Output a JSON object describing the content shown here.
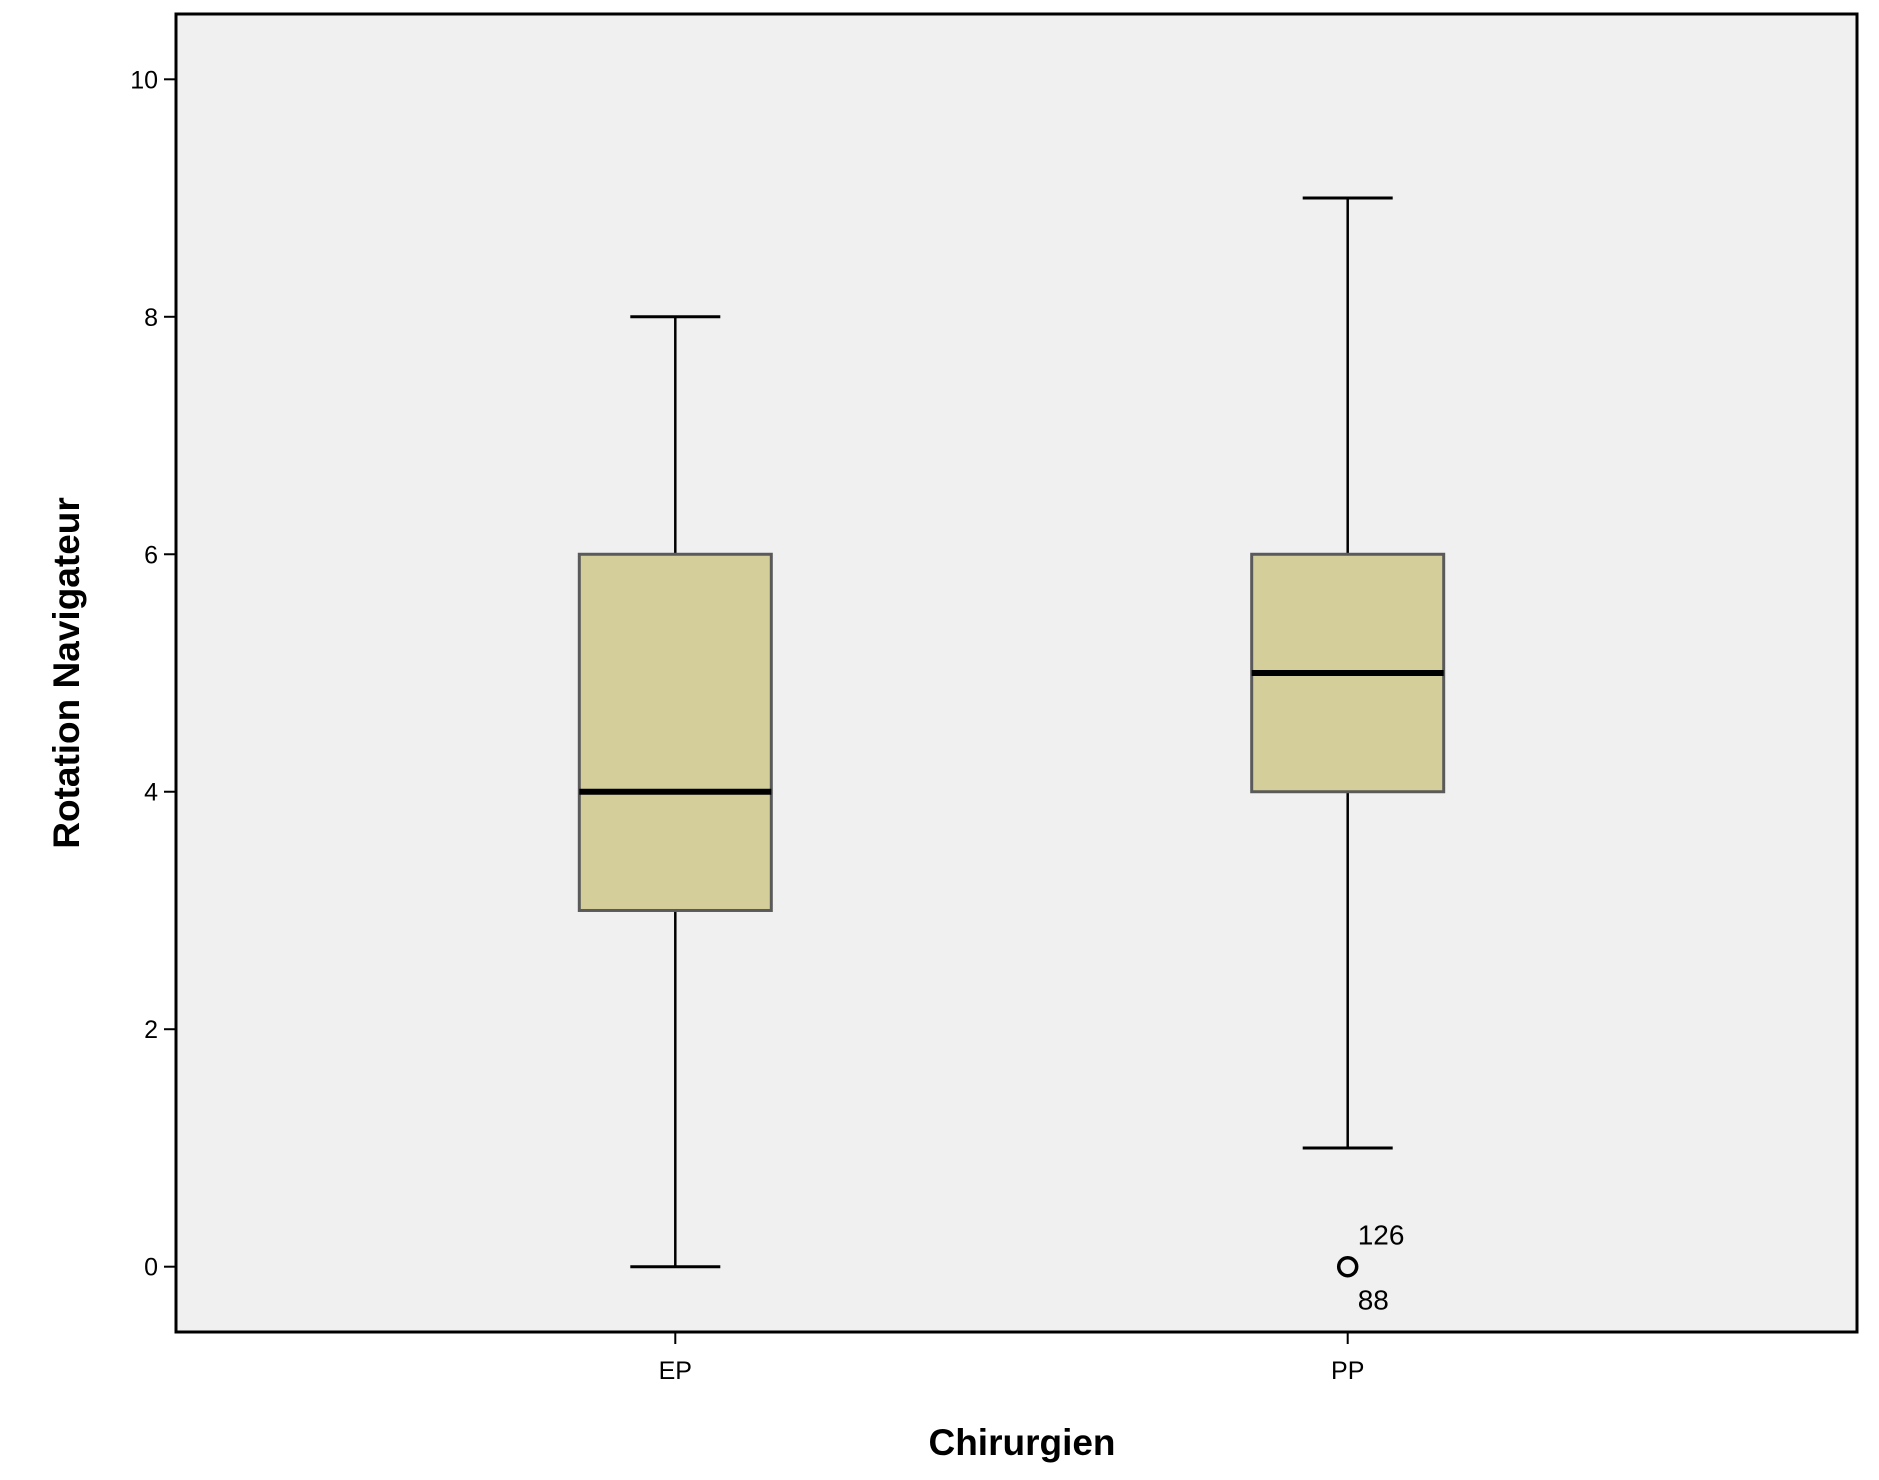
{
  "chart_data": {
    "type": "boxplot",
    "xlabel": "Chirurgien",
    "ylabel": "Rotation Navigateur",
    "ylim": [
      -0.55,
      10.55
    ],
    "yticks": [
      0,
      2,
      4,
      6,
      8,
      10
    ],
    "ytick_labels": [
      "0",
      "2",
      "4",
      "6",
      "8",
      "10"
    ],
    "grid": false,
    "legend": "none",
    "categories": [
      "EP",
      "PP"
    ],
    "boxes": [
      {
        "category": "EP",
        "whisker_low": 0,
        "q1": 3,
        "median": 4,
        "q3": 6,
        "whisker_high": 8,
        "outliers": []
      },
      {
        "category": "PP",
        "whisker_low": 1,
        "q1": 4,
        "median": 5,
        "q3": 6,
        "whisker_high": 9,
        "outliers": [
          {
            "value": 0,
            "labels": [
              "126",
              "88"
            ]
          }
        ]
      }
    ],
    "colors": {
      "plot_background": "#f0f0f0",
      "box_fill": "#d4cf9a",
      "box_stroke": "#5a5a5a",
      "line": "#000000",
      "frame": "#000000"
    }
  }
}
